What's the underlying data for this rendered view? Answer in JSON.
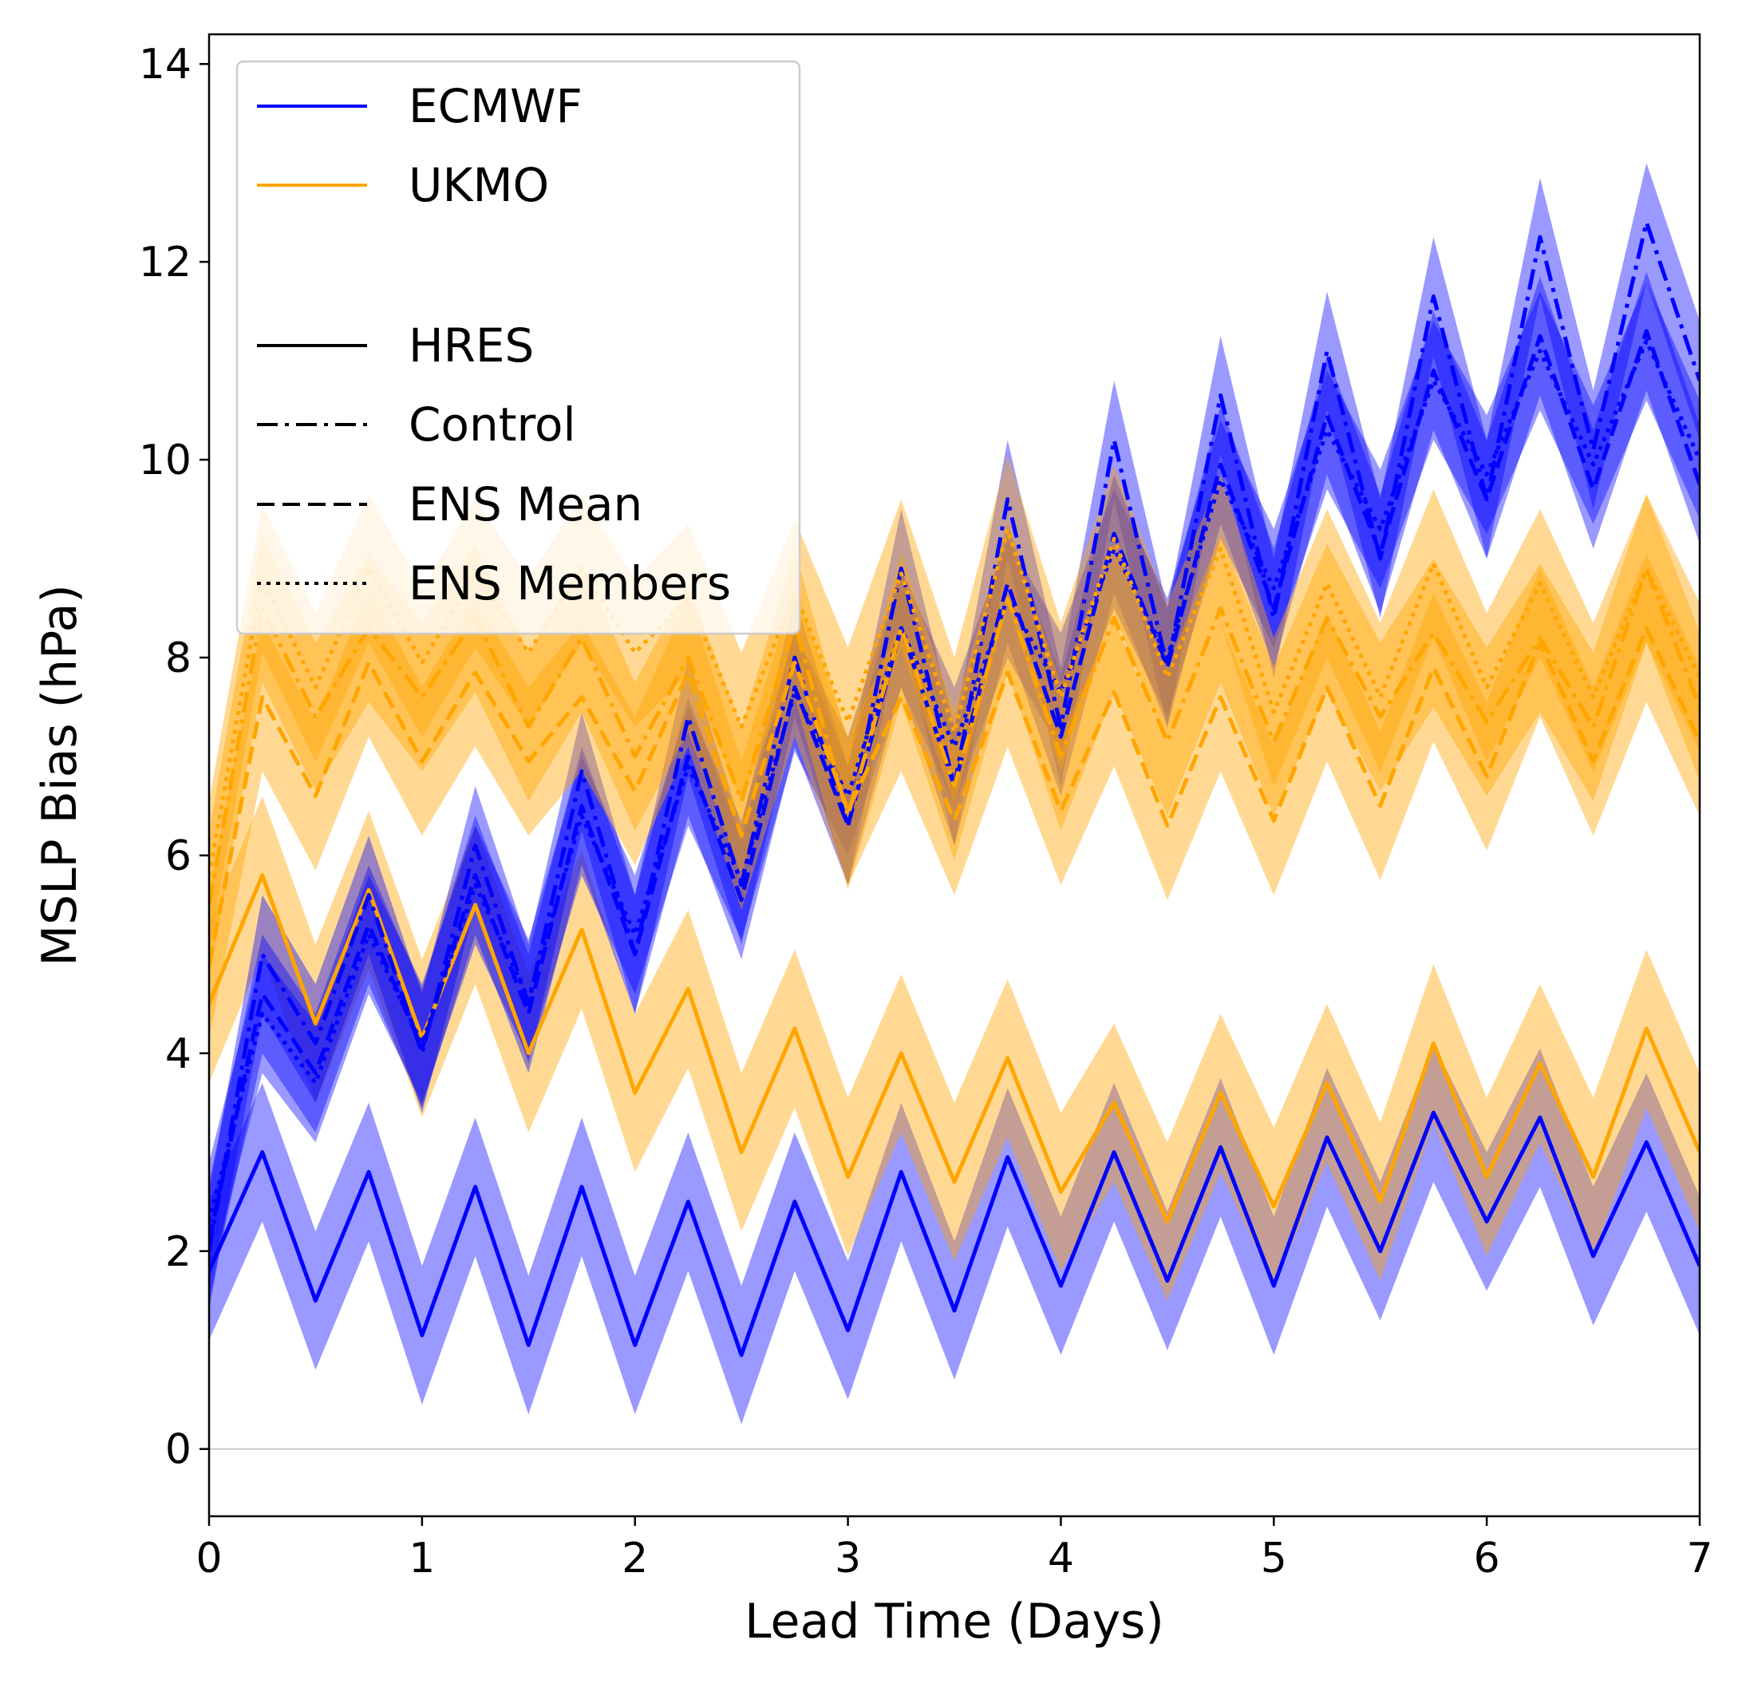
{
  "chart_data": {
    "type": "line",
    "title": "",
    "xlabel": "Lead Time (Days)",
    "ylabel": "MSLP Bias (hPa)",
    "xlim": [
      0,
      7
    ],
    "ylim": [
      -0.68,
      14.3
    ],
    "xticks": [
      0,
      1,
      2,
      3,
      4,
      5,
      6,
      7
    ],
    "yticks": [
      0,
      2,
      4,
      6,
      8,
      10,
      12,
      14
    ],
    "x": [
      0,
      0.25,
      0.5,
      0.75,
      1,
      1.25,
      1.5,
      1.75,
      2,
      2.25,
      2.5,
      2.75,
      3,
      3.25,
      3.5,
      3.75,
      4,
      4.25,
      4.5,
      4.75,
      5,
      5.25,
      5.5,
      5.75,
      6,
      6.25,
      6.5,
      6.75,
      7
    ],
    "grid": false,
    "reference_line_y": 0,
    "legend_position": "upper left",
    "colors": {
      "ECMWF": "#0000ff",
      "UKMO": "#ffa500"
    },
    "legend": [
      {
        "label": "ECMWF",
        "color": "#0000ff",
        "style": "solid"
      },
      {
        "label": "UKMO",
        "color": "#ffa500",
        "style": "solid"
      },
      {
        "label": "",
        "color": "none",
        "style": "none"
      },
      {
        "label": "HRES",
        "color": "#000000",
        "style": "solid"
      },
      {
        "label": "Control",
        "color": "#000000",
        "style": "dashdot"
      },
      {
        "label": "ENS Mean",
        "color": "#000000",
        "style": "dashed"
      },
      {
        "label": "ENS Members",
        "color": "#000000",
        "style": "dotted"
      }
    ],
    "series": [
      {
        "name": "ECMWF HRES",
        "model": "ECMWF",
        "line": "solid",
        "band": 0.7,
        "values": [
          1.8,
          3.0,
          1.5,
          2.8,
          1.15,
          2.65,
          1.05,
          2.65,
          1.05,
          2.5,
          0.95,
          2.5,
          1.2,
          2.8,
          1.4,
          2.95,
          1.65,
          3.0,
          1.7,
          3.05,
          1.65,
          3.15,
          2.0,
          3.4,
          2.3,
          3.35,
          1.95,
          3.1,
          1.85
        ]
      },
      {
        "name": "UKMO HRES",
        "model": "UKMO",
        "line": "solid",
        "band": 0.8,
        "values": [
          4.5,
          5.8,
          4.3,
          5.65,
          4.15,
          5.5,
          4.0,
          5.25,
          3.6,
          4.65,
          3.0,
          4.25,
          2.75,
          4.0,
          2.7,
          3.95,
          2.6,
          3.5,
          2.3,
          3.6,
          2.45,
          3.7,
          2.5,
          4.1,
          2.75,
          3.9,
          2.75,
          4.25,
          3.0
        ]
      },
      {
        "name": "ECMWF Control",
        "model": "ECMWF",
        "line": "dashdot",
        "band": 0.6,
        "values": [
          2.0,
          5.0,
          4.1,
          5.6,
          4.0,
          6.1,
          4.5,
          6.85,
          5.0,
          7.4,
          5.7,
          8.0,
          6.3,
          8.9,
          6.7,
          9.6,
          7.3,
          10.2,
          7.9,
          10.65,
          8.4,
          11.1,
          9.0,
          11.65,
          9.6,
          12.25,
          10.1,
          12.4,
          10.8
        ]
      },
      {
        "name": "ECMWF ENS Mean",
        "model": "ECMWF",
        "line": "dashed",
        "band": 0.6,
        "values": [
          2.1,
          4.6,
          3.8,
          5.3,
          4.05,
          5.8,
          4.4,
          6.5,
          5.0,
          7.0,
          5.55,
          7.7,
          6.3,
          8.3,
          6.7,
          8.75,
          7.2,
          9.25,
          7.9,
          9.95,
          8.5,
          10.45,
          9.05,
          10.9,
          9.6,
          11.25,
          9.7,
          11.3,
          9.75
        ]
      },
      {
        "name": "ECMWF ENS Members",
        "model": "ECMWF",
        "line": "dotted",
        "band": 0.6,
        "values": [
          2.3,
          4.4,
          3.7,
          5.2,
          4.1,
          5.7,
          4.55,
          6.4,
          5.2,
          6.9,
          5.75,
          7.65,
          6.6,
          8.3,
          7.1,
          8.6,
          7.65,
          9.1,
          8.0,
          9.8,
          8.7,
          10.3,
          9.3,
          10.8,
          9.85,
          11.1,
          9.95,
          11.2,
          10.0
        ]
      },
      {
        "name": "UKMO Control",
        "model": "UKMO",
        "line": "dashdot",
        "band": 0.75,
        "values": [
          5.5,
          8.5,
          7.4,
          8.3,
          7.6,
          8.4,
          7.3,
          8.2,
          7.0,
          8.0,
          6.55,
          8.35,
          6.4,
          8.3,
          6.7,
          8.6,
          7.0,
          8.4,
          7.15,
          8.5,
          7.15,
          8.4,
          7.4,
          8.25,
          7.35,
          8.2,
          7.3,
          8.9,
          7.5
        ]
      },
      {
        "name": "UKMO ENS Mean",
        "model": "UKMO",
        "line": "dashed",
        "band": 0.75,
        "values": [
          4.9,
          7.6,
          6.6,
          7.95,
          6.95,
          7.85,
          6.95,
          7.6,
          6.65,
          7.85,
          6.2,
          7.95,
          6.45,
          7.6,
          6.35,
          7.85,
          6.45,
          7.65,
          6.3,
          7.6,
          6.35,
          7.7,
          6.5,
          7.9,
          6.8,
          8.15,
          6.95,
          8.3,
          7.15
        ]
      },
      {
        "name": "UKMO ENS Members",
        "model": "UKMO",
        "line": "dotted",
        "band": 0.75,
        "values": [
          5.8,
          8.8,
          7.7,
          8.9,
          7.95,
          8.85,
          8.05,
          8.9,
          8.05,
          8.6,
          7.3,
          8.65,
          7.35,
          8.85,
          7.25,
          9.3,
          7.6,
          9.2,
          7.8,
          9.1,
          7.45,
          8.75,
          7.6,
          8.95,
          7.7,
          8.75,
          7.6,
          8.9,
          7.8
        ]
      }
    ]
  }
}
